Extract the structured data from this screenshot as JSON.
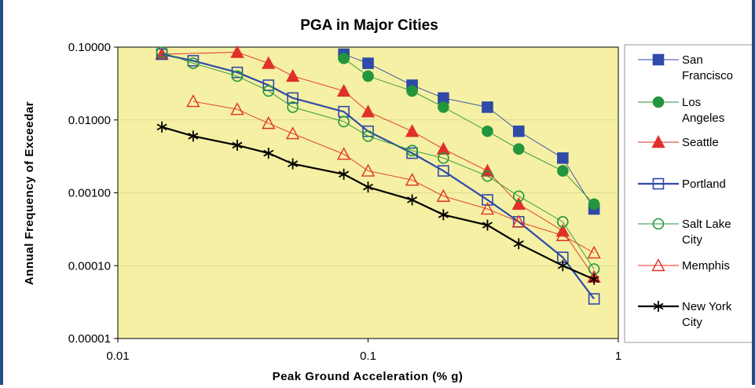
{
  "chart_data": {
    "type": "line",
    "title": "PGA in Major Cities",
    "xlabel": "Peak Ground Acceleration (% g)",
    "ylabel": "Annual Frequency of Exceedar",
    "x_scale": "log",
    "y_scale": "log",
    "xlim": [
      0.01,
      1
    ],
    "ylim": [
      1e-05,
      0.1
    ],
    "x_ticks": [
      "0.01",
      "0.1",
      "1"
    ],
    "y_ticks": [
      "0.00001",
      "0.00010",
      "0.00100",
      "0.01000",
      "0.10000"
    ],
    "background": "#f5f0a3",
    "legend_position": "right",
    "series": [
      {
        "name": "San Francisco",
        "legend_lines": [
          "San",
          "Francisco"
        ],
        "color": "#2f4aa8",
        "marker": "square-filled",
        "points": [
          [
            0.08,
            0.08
          ],
          [
            0.1,
            0.06
          ],
          [
            0.15,
            0.03
          ],
          [
            0.2,
            0.02
          ],
          [
            0.3,
            0.015
          ],
          [
            0.4,
            0.007
          ],
          [
            0.6,
            0.003
          ],
          [
            0.8,
            0.0006
          ]
        ]
      },
      {
        "name": "Los Angeles",
        "legend_lines": [
          "Los",
          "Angeles"
        ],
        "color": "#23953c",
        "marker": "circle-filled",
        "points": [
          [
            0.08,
            0.07
          ],
          [
            0.1,
            0.04
          ],
          [
            0.15,
            0.025
          ],
          [
            0.2,
            0.015
          ],
          [
            0.3,
            0.007
          ],
          [
            0.4,
            0.004
          ],
          [
            0.6,
            0.002
          ],
          [
            0.8,
            0.0007
          ]
        ]
      },
      {
        "name": "Seattle",
        "legend_lines": [
          "Seattle"
        ],
        "color": "#e0302a",
        "marker": "triangle-filled",
        "points": [
          [
            0.015,
            0.08
          ],
          [
            0.03,
            0.085
          ],
          [
            0.04,
            0.06
          ],
          [
            0.05,
            0.04
          ],
          [
            0.08,
            0.025
          ],
          [
            0.1,
            0.013
          ],
          [
            0.15,
            0.007
          ],
          [
            0.2,
            0.004
          ],
          [
            0.3,
            0.002
          ],
          [
            0.4,
            0.0007
          ],
          [
            0.6,
            0.0003
          ],
          [
            0.8,
            7e-05
          ]
        ]
      },
      {
        "name": "Portland",
        "legend_lines": [
          "Portland"
        ],
        "color": "#2f4aa8",
        "marker": "square-open",
        "points": [
          [
            0.015,
            0.08
          ],
          [
            0.02,
            0.065
          ],
          [
            0.03,
            0.045
          ],
          [
            0.04,
            0.03
          ],
          [
            0.05,
            0.02
          ],
          [
            0.08,
            0.013
          ],
          [
            0.1,
            0.007
          ],
          [
            0.15,
            0.0035
          ],
          [
            0.2,
            0.002
          ],
          [
            0.3,
            0.0008
          ],
          [
            0.4,
            0.0004
          ],
          [
            0.6,
            0.00013
          ],
          [
            0.8,
            3.5e-05
          ]
        ]
      },
      {
        "name": "Salt Lake City",
        "legend_lines": [
          "Salt Lake",
          "City"
        ],
        "color": "#23953c",
        "marker": "circle-open",
        "points": [
          [
            0.015,
            0.085
          ],
          [
            0.02,
            0.06
          ],
          [
            0.03,
            0.04
          ],
          [
            0.04,
            0.025
          ],
          [
            0.05,
            0.015
          ],
          [
            0.08,
            0.0095
          ],
          [
            0.1,
            0.006
          ],
          [
            0.15,
            0.0038
          ],
          [
            0.2,
            0.003
          ],
          [
            0.3,
            0.0017
          ],
          [
            0.4,
            0.0009
          ],
          [
            0.6,
            0.0004
          ],
          [
            0.8,
            9e-05
          ]
        ]
      },
      {
        "name": "Memphis",
        "legend_lines": [
          "Memphis"
        ],
        "color": "#e0302a",
        "marker": "triangle-open",
        "points": [
          [
            0.02,
            0.018
          ],
          [
            0.03,
            0.014
          ],
          [
            0.04,
            0.009
          ],
          [
            0.05,
            0.0065
          ],
          [
            0.08,
            0.0034
          ],
          [
            0.1,
            0.002
          ],
          [
            0.15,
            0.0015
          ],
          [
            0.2,
            0.0009
          ],
          [
            0.3,
            0.0006
          ],
          [
            0.4,
            0.0004
          ],
          [
            0.6,
            0.00026
          ],
          [
            0.8,
            0.00015
          ]
        ]
      },
      {
        "name": "New York City",
        "legend_lines": [
          "New York",
          "City"
        ],
        "color": "#000000",
        "marker": "asterisk",
        "points": [
          [
            0.015,
            0.008
          ],
          [
            0.02,
            0.006
          ],
          [
            0.03,
            0.0045
          ],
          [
            0.04,
            0.0035
          ],
          [
            0.05,
            0.0025
          ],
          [
            0.08,
            0.0018
          ],
          [
            0.1,
            0.0012
          ],
          [
            0.15,
            0.0008
          ],
          [
            0.2,
            0.0005
          ],
          [
            0.3,
            0.00036
          ],
          [
            0.4,
            0.0002
          ],
          [
            0.6,
            0.0001
          ],
          [
            0.8,
            6.5e-05
          ]
        ]
      }
    ]
  }
}
